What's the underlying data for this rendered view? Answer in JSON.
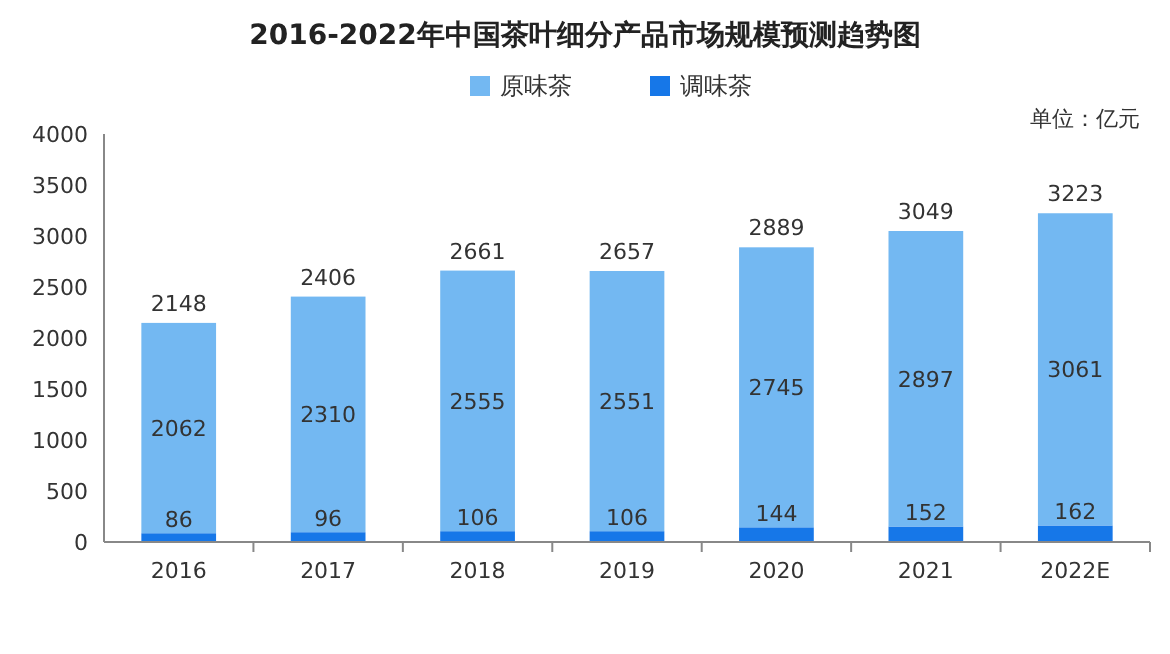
{
  "chart_data": {
    "type": "bar",
    "title": "2016-2022年中国茶叶细分产品市场规模预测趋势图",
    "categories": [
      "2016",
      "2017",
      "2018",
      "2019",
      "2020",
      "2021",
      "2022E"
    ],
    "series": [
      {
        "name": "调味茶",
        "color": "#1677e8",
        "values": [
          86,
          96,
          106,
          106,
          144,
          152,
          162
        ]
      },
      {
        "name": "原味茶",
        "color": "#73b8f2",
        "values": [
          2062,
          2310,
          2555,
          2551,
          2745,
          2897,
          3061
        ]
      }
    ],
    "stacked": true,
    "ylim": [
      0,
      4000
    ],
    "yticks": [
      0,
      500,
      1000,
      1500,
      2000,
      2500,
      3000,
      3500,
      4000
    ],
    "data_labels": true,
    "totals": [
      "2148",
      "2406",
      "2661",
      "2657",
      "2889",
      "3049",
      "3223"
    ],
    "legend": "top",
    "annotations": [
      "单位：亿元"
    ]
  }
}
